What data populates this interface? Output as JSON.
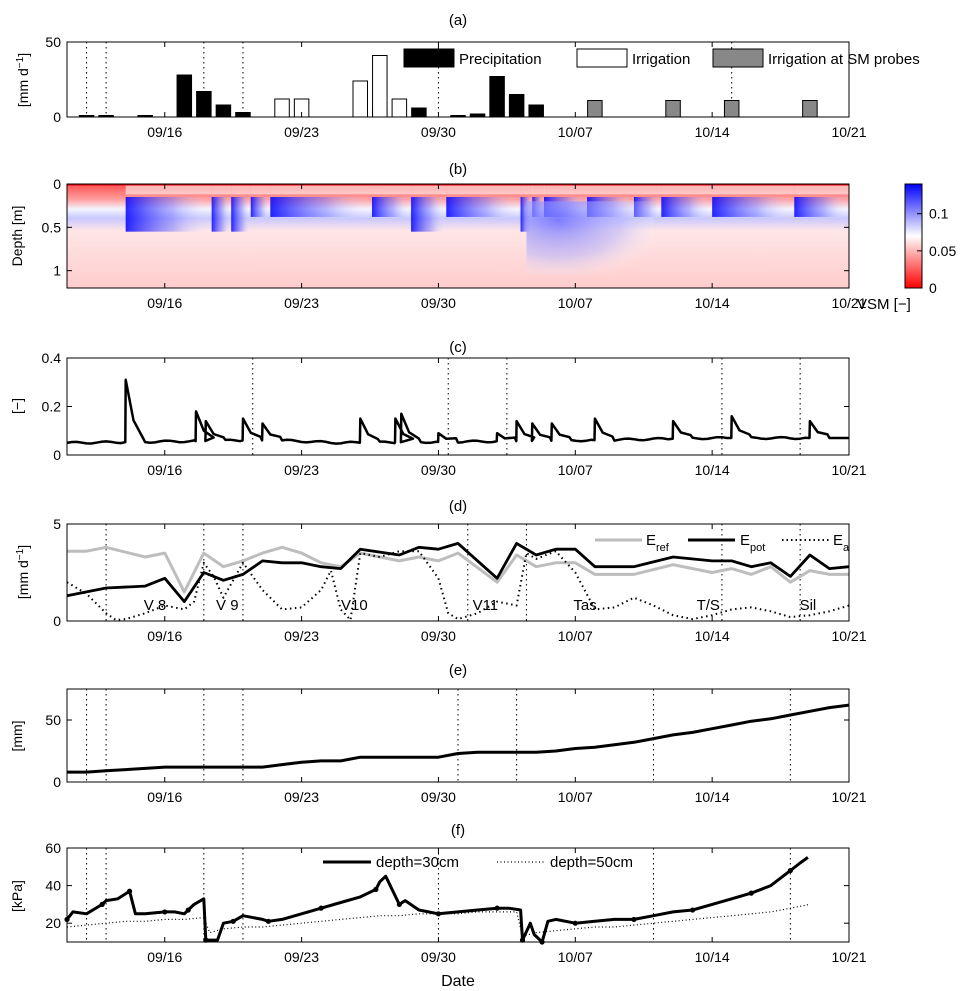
{
  "figure": {
    "x_axis_title": "Date",
    "x_ticks": [
      "09/16",
      "09/23",
      "09/30",
      "10/07",
      "10/14",
      "10/21"
    ],
    "x_tick_days": [
      16,
      23,
      30,
      37,
      44,
      51
    ],
    "x_range_days": [
      11,
      51
    ],
    "date_note": "x values are days counted from 09/00 (09/16 = 16, 10/07 = 37)"
  },
  "chart_data": [
    {
      "panel": "(a)",
      "type": "bar",
      "ylabel_parts": [
        "[mm d",
        "−1",
        "]"
      ],
      "ylim": [
        0,
        50
      ],
      "yticks": [
        0,
        50
      ],
      "vlines": [
        12,
        13,
        18,
        20,
        30,
        45
      ],
      "legend": [
        {
          "name": "Precipitation",
          "color": "#000000"
        },
        {
          "name": "Irrigation",
          "color": "#ffffff"
        },
        {
          "name": "Irrigation at SM probes",
          "color": "#888888"
        }
      ],
      "series": [
        {
          "name": "Precipitation",
          "color": "#000000",
          "x": [
            12,
            13,
            15,
            17,
            18,
            19,
            20,
            27,
            29,
            31,
            32,
            33,
            34,
            35
          ],
          "values": [
            1,
            1,
            1,
            28,
            17,
            8,
            3,
            5,
            6,
            1,
            2,
            27,
            15,
            8
          ]
        },
        {
          "name": "Irrigation",
          "color": "#ffffff",
          "x": [
            22,
            23,
            26,
            27,
            28
          ],
          "values": [
            12,
            12,
            24,
            41,
            12
          ]
        },
        {
          "name": "Irrigation at SM probes",
          "color": "#888888",
          "x": [
            38,
            42,
            45,
            49
          ],
          "values": [
            11,
            11,
            11,
            11
          ]
        }
      ]
    },
    {
      "panel": "(b)",
      "type": "heatmap",
      "ylabel": "Depth [m]",
      "ylim": [
        0,
        1.2
      ],
      "yticks": [
        0,
        0.5,
        1
      ],
      "colorbar": {
        "label": "VSM [−]",
        "ticks": [
          0,
          0.05,
          0.1
        ],
        "range": [
          0,
          0.14
        ],
        "low_color": "#ff0000",
        "mid_color": "#ffffff",
        "high_color": "#0000ff"
      },
      "wetting_events_x": [
        14,
        18.4,
        19.4,
        20.4,
        21.4,
        26.6,
        28.6,
        30.4,
        34.2,
        34.8,
        35.4,
        37.6,
        40,
        41.4,
        44,
        48.2
      ],
      "strong_events_x": [
        14,
        18.4,
        19.4,
        28.6,
        34.2
      ]
    },
    {
      "panel": "(c)",
      "type": "line",
      "ylabel": "[−]",
      "ylim": [
        0,
        0.4
      ],
      "yticks": [
        0,
        0.2,
        0.4
      ],
      "vlines": [
        20.5,
        30.5,
        33.5,
        44.5,
        48.5
      ],
      "spikes": [
        [
          14,
          0.31
        ],
        [
          17.6,
          0.18
        ],
        [
          18.1,
          0.14
        ],
        [
          20,
          0.15
        ],
        [
          21,
          0.13
        ],
        [
          26,
          0.15
        ],
        [
          27.8,
          0.15
        ],
        [
          28.1,
          0.17
        ],
        [
          30,
          0.09
        ],
        [
          33,
          0.09
        ],
        [
          34,
          0.14
        ],
        [
          34.8,
          0.13
        ],
        [
          35.8,
          0.13
        ],
        [
          38,
          0.15
        ],
        [
          42,
          0.14
        ],
        [
          45,
          0.16
        ],
        [
          49,
          0.14
        ]
      ],
      "baseline": [
        [
          11,
          0.05
        ],
        [
          20,
          0.06
        ],
        [
          22,
          0.06
        ],
        [
          25,
          0.05
        ],
        [
          37,
          0.06
        ],
        [
          44,
          0.07
        ],
        [
          51,
          0.07
        ]
      ]
    },
    {
      "panel": "(d)",
      "type": "line",
      "ylabel_parts": [
        "[mm d",
        "−1",
        "]"
      ],
      "ylim": [
        0,
        5
      ],
      "yticks": [
        0,
        5
      ],
      "vlines": [
        13,
        18,
        20,
        31.5,
        34.5,
        44.5,
        48.5
      ],
      "stage_labels": [
        {
          "text": "V 8",
          "x": 15.5
        },
        {
          "text": "V 9",
          "x": 19.2
        },
        {
          "text": "V10",
          "x": 25.7
        },
        {
          "text": "V11",
          "x": 32.4
        },
        {
          "text": "Tas",
          "x": 37.5
        },
        {
          "text": "T/S",
          "x": 43.8
        },
        {
          "text": "Sil",
          "x": 48.9
        }
      ],
      "series": [
        {
          "name_main": "E",
          "name_sub": "ref",
          "style": "gray",
          "x": [
            11,
            12,
            13,
            15,
            16,
            17,
            18,
            19,
            20,
            21,
            22,
            23,
            24,
            25,
            26,
            28,
            29,
            30,
            31,
            33,
            34,
            35,
            36,
            37,
            38,
            40,
            42,
            44,
            45,
            46,
            47,
            48,
            49,
            50,
            51
          ],
          "values": [
            3.6,
            3.6,
            3.8,
            3.3,
            3.5,
            1.5,
            3.5,
            2.8,
            3.1,
            3.5,
            3.8,
            3.5,
            3.0,
            2.8,
            3.5,
            3.1,
            3.3,
            3.1,
            3.5,
            2.0,
            3.4,
            2.8,
            3.0,
            3.0,
            2.4,
            2.4,
            2.9,
            2.5,
            2.7,
            2.4,
            2.8,
            2.0,
            2.6,
            2.4,
            2.4
          ]
        },
        {
          "name_main": "E",
          "name_sub": "pot",
          "style": "black",
          "x": [
            11,
            12,
            13,
            15,
            16,
            17,
            18,
            19,
            20,
            21,
            22,
            23,
            24,
            25,
            26,
            28,
            29,
            30,
            31,
            33,
            34,
            35,
            36,
            37,
            38,
            40,
            42,
            44,
            45,
            46,
            47,
            48,
            49,
            50,
            51
          ],
          "values": [
            1.3,
            1.5,
            1.7,
            1.8,
            2.2,
            1.0,
            2.5,
            2.1,
            2.4,
            3.1,
            3.0,
            3.0,
            2.8,
            2.7,
            3.7,
            3.4,
            3.8,
            3.7,
            4.0,
            2.2,
            4.0,
            3.4,
            3.7,
            3.7,
            2.8,
            2.8,
            3.3,
            3.1,
            3.1,
            2.8,
            3.0,
            2.3,
            3.4,
            2.7,
            2.8
          ]
        },
        {
          "name_main": "E",
          "name_sub": "a",
          "style": "dotted",
          "x": [
            11,
            12,
            13,
            13.5,
            14,
            15,
            16,
            17,
            17.5,
            18,
            18.5,
            19,
            20,
            21,
            22,
            23,
            24,
            24.5,
            25,
            25.5,
            26,
            27,
            28,
            29,
            30,
            30.5,
            31,
            32,
            33,
            34,
            34.5,
            35,
            36,
            37,
            38,
            39,
            40,
            41,
            42,
            43,
            44,
            45,
            46,
            47,
            48,
            49,
            50,
            51
          ],
          "values": [
            2.0,
            1.4,
            0.4,
            0.05,
            0.1,
            0.4,
            0.8,
            0.6,
            1.0,
            3.0,
            2.3,
            1.2,
            3.0,
            1.6,
            0.6,
            0.7,
            1.6,
            2.6,
            0.6,
            0.05,
            3.5,
            3.3,
            3.6,
            3.6,
            2.2,
            0.4,
            0.1,
            0.4,
            1.0,
            0.8,
            3.5,
            3.2,
            3.6,
            2.5,
            0.6,
            0.7,
            1.2,
            0.8,
            0.3,
            0.1,
            0.3,
            0.6,
            0.7,
            0.5,
            0.2,
            0.3,
            0.5,
            0.8
          ]
        }
      ]
    },
    {
      "panel": "(e)",
      "type": "line",
      "ylabel": "[mm]",
      "ylim": [
        0,
        75
      ],
      "yticks": [
        0,
        50
      ],
      "vlines": [
        12,
        13,
        18,
        20,
        31,
        34,
        41,
        48
      ],
      "series": [
        {
          "x": [
            11,
            12,
            13,
            14,
            15,
            16,
            17,
            18,
            19,
            20,
            21,
            22,
            23,
            24,
            25,
            26,
            27,
            28,
            29,
            30,
            31,
            32,
            33,
            34,
            35,
            36,
            37,
            38,
            39,
            40,
            41,
            42,
            43,
            44,
            45,
            46,
            47,
            48,
            49,
            50,
            51
          ],
          "values": [
            8,
            8,
            9,
            10,
            11,
            12,
            12,
            12,
            12,
            12,
            12,
            14,
            16,
            17,
            17,
            20,
            20,
            20,
            20,
            20,
            23,
            24,
            24,
            24,
            24,
            25,
            27,
            28,
            30,
            32,
            35,
            38,
            40,
            43,
            46,
            49,
            51,
            54,
            57,
            60,
            62
          ]
        }
      ]
    },
    {
      "panel": "(f)",
      "type": "line",
      "ylabel": "[kPa]",
      "ylim": [
        10,
        60
      ],
      "yticks": [
        20,
        40,
        60
      ],
      "vlines": [
        12,
        13,
        18,
        20,
        30,
        41,
        48
      ],
      "series": [
        {
          "name": "depth=30cm",
          "style": "thick",
          "x": [
            11,
            11.3,
            12,
            12.8,
            13,
            13.6,
            14.2,
            14.5,
            15,
            16,
            16.5,
            17,
            17.2,
            17.5,
            18,
            18.1,
            18.7,
            19,
            19.5,
            20,
            21,
            21.3,
            22,
            23,
            24,
            25,
            26,
            26.8,
            27,
            27.3,
            28,
            28.3,
            29,
            30,
            31,
            32,
            33,
            33.6,
            34.2,
            34.3,
            34.7,
            34.9,
            35.3,
            35.6,
            36,
            37,
            38,
            39,
            40,
            41,
            42,
            43,
            44,
            45,
            46,
            47,
            47.5,
            48,
            48.5,
            48.9
          ],
          "values": [
            22,
            26,
            25,
            30,
            32,
            33,
            37,
            25,
            25,
            26,
            26,
            25,
            27,
            30,
            33,
            11,
            11,
            20,
            21,
            24,
            22,
            21,
            22,
            25,
            28,
            31,
            34,
            38,
            42,
            45,
            30,
            32,
            27,
            25,
            26,
            27,
            28,
            28,
            27,
            11,
            20,
            14,
            10,
            21,
            22,
            20,
            21,
            22,
            22,
            24,
            26,
            27,
            30,
            33,
            36,
            40,
            44,
            48,
            52,
            55
          ]
        },
        {
          "name": "depth=50cm",
          "style": "dotted",
          "x": [
            11,
            12,
            13,
            14,
            15,
            16,
            17,
            18,
            18.3,
            19,
            20,
            21,
            22,
            23,
            24,
            25,
            26,
            27,
            28,
            29,
            30,
            31,
            32,
            33,
            34,
            34.3,
            35,
            36,
            37,
            38,
            39,
            40,
            41,
            42,
            43,
            44,
            45,
            46,
            47,
            48,
            49
          ],
          "values": [
            18,
            19,
            20,
            21,
            21,
            22,
            22,
            23,
            15,
            17,
            18,
            18,
            19,
            20,
            21,
            22,
            23,
            24,
            24,
            25,
            25,
            25,
            26,
            26,
            26,
            13,
            15,
            16,
            17,
            18,
            18,
            19,
            20,
            21,
            22,
            23,
            24,
            25,
            26,
            28,
            30
          ]
        }
      ]
    }
  ]
}
